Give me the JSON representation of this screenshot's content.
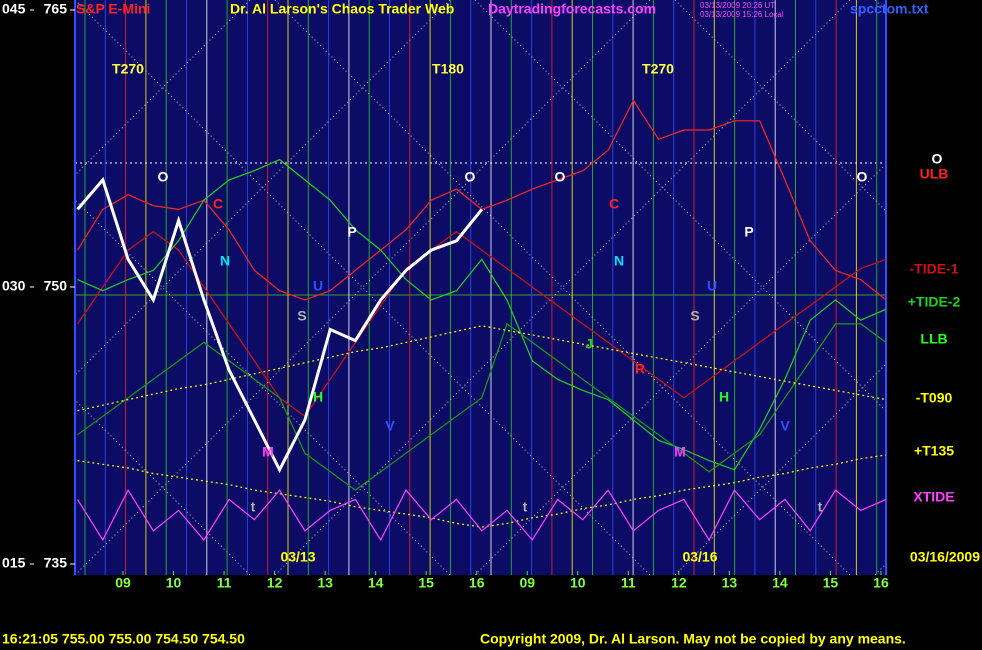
{
  "chart_data": {
    "type": "line",
    "title": "S&P E-Mini",
    "site_title": "Dr. Al Larson's Chaos Trader Web",
    "site_url": "Daytradingforecasts.com",
    "timestamp_ut": "03/13/2009 20:26 UT",
    "timestamp_local": "03/13/2009 15:26 Local",
    "file_name": "spcctom.txt",
    "top_labels": [
      "T270",
      "T180",
      "T270"
    ],
    "date_labels": [
      "03/13",
      "03/16",
      "03/16/2009"
    ],
    "status_line": "16:21:05  755.00 755.00 754.50 754.50",
    "copyright": "Copyright 2009, Dr. Al Larson. May not be copied by any means.",
    "xlim": [
      -0.95,
      15.1
    ],
    "xticks": [
      {
        "value": 0,
        "label": "09"
      },
      {
        "value": 1,
        "label": "10"
      },
      {
        "value": 2,
        "label": "11"
      },
      {
        "value": 3,
        "label": "12"
      },
      {
        "value": 4,
        "label": "13"
      },
      {
        "value": 5,
        "label": "14"
      },
      {
        "value": 6,
        "label": "15"
      },
      {
        "value": 7,
        "label": "16"
      },
      {
        "value": 8,
        "label": "09"
      },
      {
        "value": 9,
        "label": "10"
      },
      {
        "value": 10,
        "label": "11"
      },
      {
        "value": 11,
        "label": "12"
      },
      {
        "value": 12,
        "label": "13"
      },
      {
        "value": 13,
        "label": "14"
      },
      {
        "value": 14,
        "label": "15"
      },
      {
        "value": 15,
        "label": "16"
      }
    ],
    "ylim": [
      735,
      765
    ],
    "yticks": [
      765,
      750,
      735
    ],
    "y2lim": [
      15,
      45
    ],
    "y2ticks": [
      {
        "value": 45,
        "label": "045"
      },
      {
        "value": 30,
        "label": "030"
      },
      {
        "value": 15,
        "label": "015"
      }
    ],
    "x": [
      -0.9,
      -0.4,
      0.1,
      0.6,
      1.1,
      1.6,
      2.1,
      2.6,
      3.1,
      3.6,
      4.1,
      4.6,
      5.1,
      5.6,
      6.1,
      6.6,
      7.1,
      7.6,
      8.1,
      8.6,
      9.1,
      9.6,
      10.1,
      10.6,
      11.1,
      11.6,
      12.1,
      12.6,
      13.1,
      13.6,
      14.1,
      14.6,
      15.1
    ],
    "price": {
      "color": "#ffffff",
      "values": [
        754.2,
        755.8,
        751.5,
        749.3,
        753.6,
        749.3,
        745.5,
        742.8,
        740.1,
        742.8,
        747.7,
        747.1,
        749.3,
        750.9,
        752.0,
        752.5,
        754.2,
        null,
        null,
        null,
        null,
        null,
        null,
        null,
        null,
        null,
        null,
        null,
        null,
        null,
        null,
        null,
        null
      ]
    },
    "series": [
      {
        "name": "ULB",
        "color": "#ff2020",
        "style": "solid",
        "values": [
          752.0,
          754.2,
          755.0,
          754.4,
          754.2,
          754.7,
          753.1,
          750.9,
          749.8,
          749.3,
          749.8,
          750.9,
          752.0,
          753.1,
          754.7,
          755.3,
          754.2,
          754.7,
          755.3,
          755.8,
          756.3,
          757.4,
          760.1,
          758.0,
          758.5,
          758.5,
          759.0,
          759.0,
          755.8,
          752.5,
          750.9,
          750.4,
          749.3
        ]
      },
      {
        "name": "-TIDE-1",
        "color": "#d01010",
        "style": "solid",
        "values": [
          748,
          750,
          752,
          753,
          752,
          750,
          748,
          746,
          744,
          743,
          745,
          747,
          749,
          751,
          752,
          753,
          752,
          751,
          750,
          749,
          748,
          747,
          746,
          745,
          744,
          745,
          746,
          747,
          748,
          749,
          750,
          751,
          751.5
        ]
      },
      {
        "name": "+TIDE-2",
        "color": "#20d020",
        "style": "solid",
        "values": [
          750.4,
          749.8,
          750.4,
          750.9,
          752.5,
          754.7,
          755.8,
          756.3,
          756.9,
          755.8,
          754.7,
          753.1,
          752.0,
          750.4,
          749.3,
          749.8,
          751.5,
          749.3,
          746.0,
          745.0,
          744.4,
          743.9,
          742.8,
          741.7,
          741.2,
          740.6,
          740.1,
          742.3,
          745.0,
          748.2,
          749.3,
          748.2,
          748.8
        ]
      },
      {
        "name": "LLB",
        "color": "#10a010",
        "style": "solid",
        "values": [
          742,
          743,
          744,
          745,
          746,
          747,
          746,
          745,
          744,
          741,
          740,
          739,
          740,
          741,
          742,
          743,
          744,
          748,
          747,
          746,
          745,
          744,
          743,
          742,
          741,
          740,
          741,
          742,
          744,
          746,
          748,
          748,
          747
        ]
      },
      {
        "name": "-T090",
        "color": "#ffff00",
        "style": "dotted",
        "values": [
          743.3,
          743.6,
          743.9,
          744.2,
          744.5,
          744.7,
          745.0,
          745.3,
          745.6,
          745.9,
          746.2,
          746.5,
          746.7,
          747.0,
          747.3,
          747.6,
          747.9,
          747.65,
          747.4,
          747.15,
          746.9,
          746.65,
          746.4,
          746.15,
          745.9,
          745.65,
          745.4,
          745.15,
          744.9,
          744.65,
          744.4,
          744.15,
          743.9
        ]
      },
      {
        "name": "+T135",
        "color": "#ffff00",
        "style": "dotted",
        "values": [
          740.6,
          740.4,
          740.2,
          739.9,
          739.7,
          739.5,
          739.3,
          739.0,
          738.8,
          738.6,
          738.4,
          738.1,
          737.9,
          737.7,
          737.5,
          737.2,
          737.0,
          737.2,
          737.5,
          737.7,
          738.0,
          738.2,
          738.5,
          738.7,
          739.0,
          739.2,
          739.4,
          739.7,
          739.9,
          740.2,
          740.4,
          740.7,
          740.9
        ]
      },
      {
        "name": "XTIDE",
        "color": "#ff40ff",
        "style": "solid",
        "values": [
          738.5,
          736.3,
          739.0,
          736.8,
          737.9,
          736.3,
          738.5,
          737.4,
          739.0,
          736.8,
          737.9,
          738.5,
          736.3,
          739.0,
          737.4,
          738.5,
          736.8,
          737.9,
          736.3,
          738.5,
          737.4,
          739.0,
          736.8,
          737.9,
          738.5,
          736.3,
          739.0,
          737.4,
          738.5,
          736.8,
          739.0,
          737.9,
          738.5
        ]
      }
    ],
    "markers": [
      {
        "label": "O",
        "color": "#ffffff"
      },
      {
        "label": "O",
        "color": "#ffffff"
      },
      {
        "label": "O",
        "color": "#ffffff"
      },
      {
        "label": "O",
        "color": "#ffffff"
      },
      {
        "label": "O",
        "color": "#ffffff"
      },
      {
        "label": "C",
        "color": "#ff2020"
      },
      {
        "label": "C",
        "color": "#ff2020"
      },
      {
        "label": "N",
        "color": "#00e0ff"
      },
      {
        "label": "N",
        "color": "#00e0ff"
      },
      {
        "label": "P",
        "color": "#ffffff"
      },
      {
        "label": "P",
        "color": "#ffffff"
      },
      {
        "label": "S",
        "color": "#b0b0b0"
      },
      {
        "label": "S",
        "color": "#b0b0b0"
      },
      {
        "label": "U",
        "color": "#3050ff"
      },
      {
        "label": "U",
        "color": "#3050ff"
      },
      {
        "label": "J",
        "color": "#20d020"
      },
      {
        "label": "R",
        "color": "#ff2020"
      },
      {
        "label": "H",
        "color": "#20ff20"
      },
      {
        "label": "H",
        "color": "#20ff20"
      },
      {
        "label": "V",
        "color": "#3050ff"
      },
      {
        "label": "V",
        "color": "#3050ff"
      },
      {
        "label": "M",
        "color": "#ff40ff"
      },
      {
        "label": "M",
        "color": "#ff40ff"
      },
      {
        "label": "t",
        "color": "#b0b0b0"
      },
      {
        "label": "t",
        "color": "#b0b0b0"
      },
      {
        "label": "t",
        "color": "#b0b0b0"
      }
    ]
  }
}
